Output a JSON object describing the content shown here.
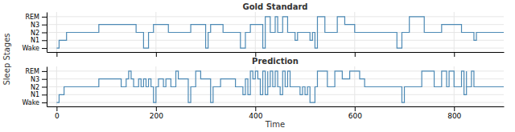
{
  "chart_data": [
    {
      "type": "step",
      "title": "Gold Standard",
      "y_label": "Sleep Stages",
      "color": "#4d8ab5",
      "grid": true,
      "tick_labels": "y",
      "xlim": [
        -20,
        900
      ],
      "xticks": [
        0,
        200,
        400,
        600,
        800
      ],
      "ylim": [
        -0.5,
        4.6
      ],
      "yticks": [
        {
          "value": 0,
          "label": "Wake"
        },
        {
          "value": 1,
          "label": "N1"
        },
        {
          "value": 2,
          "label": "N2"
        },
        {
          "value": 3,
          "label": "N3"
        },
        {
          "value": 4,
          "label": "REM"
        }
      ],
      "x": [
        0,
        5,
        20,
        85,
        160,
        160,
        175,
        175,
        185,
        195,
        195,
        225,
        225,
        245,
        270,
        270,
        300,
        300,
        305,
        310,
        310,
        335,
        335,
        355,
        370,
        370,
        380,
        390,
        390,
        415,
        415,
        420,
        430,
        430,
        440,
        440,
        445,
        445,
        450,
        455,
        455,
        465,
        465,
        470,
        480,
        480,
        485,
        490,
        510,
        510,
        515,
        520,
        520,
        525,
        525,
        540,
        540,
        565,
        565,
        580,
        580,
        600,
        600,
        615,
        635,
        655,
        670,
        685,
        685,
        695,
        700,
        710,
        710,
        740,
        740,
        755,
        775,
        775,
        815,
        815,
        840,
        840,
        845,
        860,
        880,
        900
      ],
      "values": [
        0,
        1,
        2,
        3,
        3,
        2,
        2,
        0,
        2,
        2,
        3,
        3,
        2,
        2,
        2,
        3,
        3,
        0,
        2,
        2,
        3,
        3,
        2,
        2,
        2,
        0,
        2,
        2,
        3,
        3,
        0,
        4,
        4,
        2,
        2,
        4,
        4,
        2,
        2,
        2,
        4,
        4,
        2,
        2,
        2,
        1,
        2,
        2,
        2,
        1,
        2,
        2,
        0,
        2,
        4,
        4,
        2,
        2,
        4,
        4,
        3,
        3,
        2,
        2,
        2,
        2,
        2,
        2,
        0,
        2,
        2,
        2,
        4,
        4,
        2,
        2,
        2,
        3,
        3,
        2,
        2,
        1,
        2,
        2,
        2,
        2
      ]
    },
    {
      "type": "step",
      "title": "Prediction",
      "x_label": "Time",
      "color": "#4d8ab5",
      "grid": true,
      "xlim": [
        -20,
        900
      ],
      "xticks": [
        0,
        200,
        400,
        600,
        800
      ],
      "ylim": [
        -0.5,
        4.6
      ],
      "yticks": [
        {
          "value": 0,
          "label": "Wake"
        },
        {
          "value": 1,
          "label": "N1"
        },
        {
          "value": 2,
          "label": "N2"
        },
        {
          "value": 3,
          "label": "N3"
        },
        {
          "value": 4,
          "label": "REM"
        }
      ],
      "x": [
        0,
        5,
        15,
        85,
        130,
        130,
        140,
        140,
        145,
        145,
        150,
        150,
        155,
        155,
        165,
        165,
        170,
        170,
        175,
        175,
        180,
        180,
        185,
        185,
        190,
        190,
        195,
        195,
        200,
        205,
        205,
        215,
        215,
        220,
        220,
        230,
        230,
        240,
        240,
        245,
        245,
        265,
        265,
        270,
        280,
        280,
        290,
        290,
        310,
        310,
        315,
        330,
        330,
        360,
        360,
        375,
        375,
        380,
        385,
        385,
        390,
        390,
        395,
        395,
        400,
        400,
        405,
        405,
        410,
        410,
        415,
        415,
        420,
        420,
        425,
        425,
        430,
        430,
        435,
        435,
        440,
        440,
        445,
        445,
        450,
        450,
        455,
        460,
        460,
        465,
        465,
        470,
        470,
        475,
        480,
        490,
        490,
        495,
        500,
        500,
        505,
        510,
        510,
        520,
        525,
        525,
        545,
        545,
        560,
        560,
        575,
        575,
        590,
        590,
        610,
        610,
        620,
        620,
        640,
        660,
        680,
        695,
        695,
        700,
        705,
        720,
        735,
        735,
        750,
        760,
        760,
        775,
        775,
        785,
        785,
        790,
        790,
        800,
        800,
        815,
        815,
        820,
        820,
        825,
        825,
        835,
        835,
        840,
        840,
        855,
        870,
        900
      ],
      "values": [
        0,
        1,
        2,
        3,
        3,
        2,
        2,
        3,
        3,
        4,
        4,
        3,
        3,
        2,
        2,
        3,
        3,
        2,
        2,
        3,
        3,
        2,
        2,
        3,
        3,
        2,
        2,
        0,
        2,
        2,
        3,
        3,
        2,
        2,
        3,
        3,
        2,
        2,
        4,
        4,
        3,
        3,
        0,
        2,
        2,
        4,
        4,
        3,
        3,
        0,
        2,
        2,
        3,
        3,
        2,
        2,
        1,
        3,
        3,
        1,
        3,
        4,
        4,
        3,
        3,
        4,
        4,
        3,
        3,
        1,
        3,
        4,
        4,
        1,
        4,
        2,
        2,
        4,
        4,
        2,
        2,
        4,
        4,
        2,
        2,
        1,
        4,
        4,
        2,
        2,
        4,
        4,
        2,
        2,
        2,
        2,
        1,
        2,
        2,
        1,
        2,
        2,
        0,
        2,
        2,
        4,
        4,
        2,
        2,
        4,
        4,
        3,
        3,
        4,
        4,
        3,
        3,
        2,
        2,
        2,
        2,
        2,
        0,
        2,
        2,
        2,
        2,
        4,
        4,
        4,
        2,
        2,
        4,
        4,
        2,
        2,
        4,
        4,
        2,
        2,
        4,
        4,
        1,
        4,
        2,
        2,
        4,
        4,
        2,
        2,
        2,
        2
      ]
    }
  ]
}
